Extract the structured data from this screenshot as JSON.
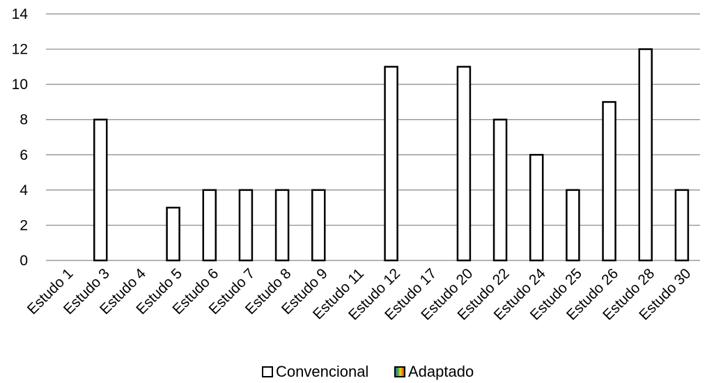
{
  "chart_data": {
    "type": "bar",
    "title": "",
    "xlabel": "",
    "ylabel": "",
    "ylim": [
      0,
      14
    ],
    "yticks": [
      0,
      2,
      4,
      6,
      8,
      10,
      12,
      14
    ],
    "grid": true,
    "legend_position": "bottom",
    "categories": [
      "Estudo 1",
      "Estudo 3",
      "Estudo 4",
      "Estudo 5",
      "Estudo 6",
      "Estudo 7",
      "Estudo 8",
      "Estudo 9",
      "Estudo 11",
      "Estudo 12",
      "Estudo 17",
      "Estudo 20",
      "Estudo 22",
      "Estudo 24",
      "Estudo 25",
      "Estudo 26",
      "Estudo 28",
      "Estudo 30"
    ],
    "series": [
      {
        "name": "Convencional",
        "values": [
          0,
          8,
          0,
          3,
          4,
          4,
          4,
          4,
          0,
          11,
          0,
          11,
          8,
          6,
          4,
          9,
          12,
          4
        ]
      },
      {
        "name": "Adaptado",
        "values": [
          0,
          0,
          0,
          0,
          0,
          0,
          0,
          0,
          0,
          0,
          0,
          0,
          0,
          0,
          0,
          0,
          0,
          0
        ]
      }
    ]
  },
  "legend": {
    "items": [
      {
        "label": "Convencional",
        "color": "#ffffff"
      },
      {
        "label": "Adaptado",
        "color": "multicolor"
      }
    ]
  },
  "colors": {
    "bar_fill": "#ffffff",
    "bar_stroke": "#000000",
    "grid": "#868686",
    "axis": "#868686"
  }
}
